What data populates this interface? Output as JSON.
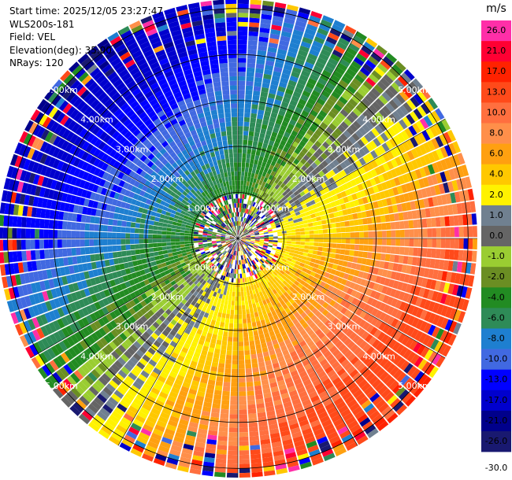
{
  "header": {
    "start_time": "Start time: 2025/12/05 23:27:47",
    "instrument": "WLS200s-181",
    "field": "Field: VEL",
    "elevation": "Elevation(deg): 35.00",
    "nrays": "NRays: 120"
  },
  "colorbar": {
    "unit": "m/s",
    "bins": [
      {
        "label": "26.0",
        "color": "#ff2fa8"
      },
      {
        "label": "21.0",
        "color": "#ff0033"
      },
      {
        "label": "17.0",
        "color": "#ff2200"
      },
      {
        "label": "13.0",
        "color": "#ff4a1a"
      },
      {
        "label": "10.0",
        "color": "#ff6f3f"
      },
      {
        "label": "8.0",
        "color": "#ff8f4a"
      },
      {
        "label": "6.0",
        "color": "#ffa010"
      },
      {
        "label": "4.0",
        "color": "#ffc800"
      },
      {
        "label": "2.0",
        "color": "#fff200"
      },
      {
        "label": "1.0",
        "color": "#708090"
      },
      {
        "label": "0.0",
        "color": "#656565"
      },
      {
        "label": "-1.0",
        "color": "#9acd32"
      },
      {
        "label": "-2.0",
        "color": "#6b8e23"
      },
      {
        "label": "-4.0",
        "color": "#228b22"
      },
      {
        "label": "-6.0",
        "color": "#2e8b57"
      },
      {
        "label": "-8.0",
        "color": "#1e7fd0"
      },
      {
        "label": "-10.0",
        "color": "#4169e1"
      },
      {
        "label": "-13.0",
        "color": "#0000ff"
      },
      {
        "label": "-17.0",
        "color": "#0000cd"
      },
      {
        "label": "-21.0",
        "color": "#00008b"
      },
      {
        "label": "-26.0",
        "color": "#191970"
      }
    ],
    "bottom_label": "-30.0"
  },
  "chart_data": {
    "type": "heatmap",
    "field": "VEL",
    "units": "m/s",
    "projection": "polar PPI",
    "nrays": 120,
    "range_rings_km": [
      1,
      2,
      3,
      4,
      5
    ],
    "ring_labels": [
      "1.00km",
      "2.00km",
      "3.00km",
      "4.00km",
      "5.00km"
    ],
    "max_range_km": 5.2,
    "wind_pattern": {
      "positive_max_direction": "lower-right",
      "negative_max_direction": "upper-left",
      "vmin": -30,
      "vmax": 30
    },
    "grid": true
  }
}
